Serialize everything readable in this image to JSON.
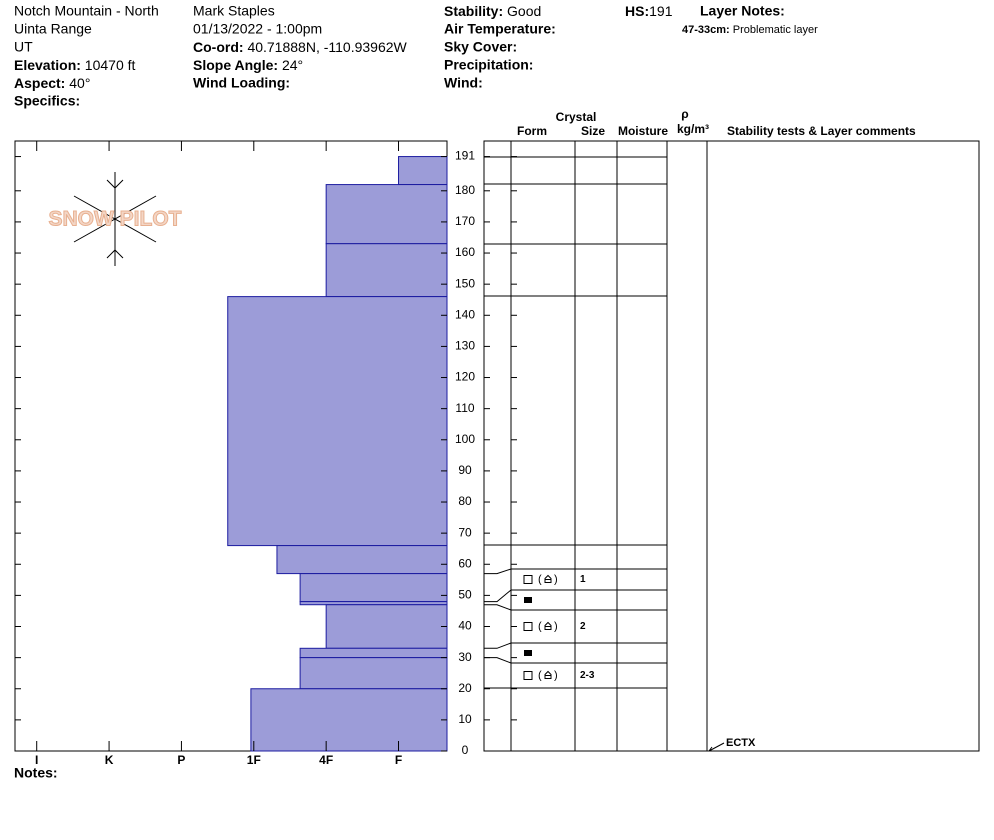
{
  "site": {
    "name": "Notch Mountain - North",
    "range": "Uinta Range",
    "state": "UT",
    "elevation": {
      "label": "Elevation:",
      "value": "10470 ft"
    },
    "aspect": {
      "label": "Aspect:",
      "value": "40°"
    },
    "specifics": {
      "label": "Specifics:"
    }
  },
  "observation": {
    "observer": "Mark Staples",
    "datetime": "01/13/2022 - 1:00pm",
    "coord": {
      "label": "Co-ord:",
      "value": "40.71888N, -110.93962W"
    },
    "slope_angle": {
      "label": "Slope Angle:",
      "value": "24°"
    },
    "wind_loading": {
      "label": "Wind Loading:"
    }
  },
  "conditions": {
    "stability": {
      "label": "Stability:",
      "value": "Good"
    },
    "air_temperature": {
      "label": "Air Temperature:"
    },
    "sky_cover": {
      "label": "Sky Cover:"
    },
    "precipitation": {
      "label": "Precipitation:"
    },
    "wind": {
      "label": "Wind:"
    }
  },
  "hs": {
    "label": "HS:",
    "value": 191
  },
  "layer_notes": {
    "title": "Layer Notes:",
    "items": [
      {
        "depth": "47-33cm:",
        "text": "Problematic layer"
      }
    ]
  },
  "logo": "SNOW PILOT",
  "table_headers": {
    "crystal": "Crystal",
    "form": "Form",
    "size": "Size",
    "moisture": "Moisture",
    "density_symbol": "ρ",
    "density_unit": "kg/m³",
    "comments": "Stability tests & Layer comments"
  },
  "chart_data": {
    "type": "snowprofile",
    "color": "#9c9cd8",
    "ylim": [
      0,
      196
    ],
    "yticks": [
      0,
      10,
      20,
      30,
      40,
      50,
      60,
      70,
      80,
      90,
      100,
      110,
      120,
      130,
      140,
      150,
      160,
      170,
      180,
      191
    ],
    "xlim": [
      6.3,
      0.33
    ],
    "xticks": [
      {
        "value": 6,
        "label": "I"
      },
      {
        "value": 5,
        "label": "K"
      },
      {
        "value": 4,
        "label": "P"
      },
      {
        "value": 3,
        "label": "1F"
      },
      {
        "value": 2,
        "label": "4F"
      },
      {
        "value": 1,
        "label": "F"
      }
    ],
    "layers": [
      {
        "top": 191,
        "bottom": 182,
        "hardness": 1
      },
      {
        "top": 182,
        "bottom": 163,
        "hardness": 2
      },
      {
        "top": 163,
        "bottom": 146,
        "hardness": 2
      },
      {
        "top": 146,
        "bottom": 66,
        "hardness": 3.36
      },
      {
        "top": 66,
        "bottom": 57,
        "hardness": 2.68
      },
      {
        "top": 57,
        "bottom": 48,
        "hardness": 2.36,
        "size": "1"
      },
      {
        "top": 48,
        "bottom": 47,
        "hardness": 2.36
      },
      {
        "top": 47,
        "bottom": 33,
        "hardness": 2,
        "size": "2"
      },
      {
        "top": 33,
        "bottom": 30,
        "hardness": 2.36
      },
      {
        "top": 30,
        "bottom": 20,
        "hardness": 2.36,
        "size": "2-3"
      },
      {
        "top": 20,
        "bottom": 0,
        "hardness": 3.04
      }
    ],
    "tests": [
      {
        "depth": 0,
        "label": "ECTX"
      }
    ]
  },
  "notes": {
    "label": "Notes:"
  }
}
